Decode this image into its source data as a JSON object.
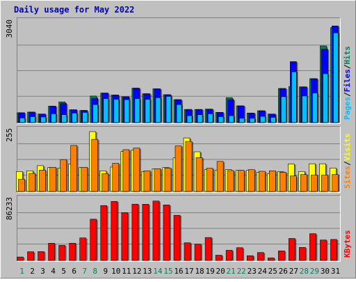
{
  "title": "Daily usage for May 2022",
  "colors": {
    "background": "#C0C0C0",
    "border_light": "#FFFFFF",
    "border_dark": "#808080",
    "title": "#0000C0",
    "hits": "#00805C",
    "files": "#0000FF",
    "pages": "#00C0FF",
    "visits": "#FFFF00",
    "sites": "#FF8000",
    "kbytes": "#FF0000",
    "weekday_label": "#000000",
    "weekend_label": "#00805C",
    "gridline": "#808080"
  },
  "chart_data": [
    {
      "type": "bar",
      "name": "hits-files-pages",
      "x": [
        1,
        2,
        3,
        4,
        5,
        6,
        7,
        8,
        9,
        10,
        11,
        12,
        13,
        14,
        15,
        16,
        17,
        18,
        19,
        20,
        21,
        22,
        23,
        24,
        25,
        26,
        27,
        28,
        29,
        30,
        31
      ],
      "weekend_days": [
        1,
        7,
        8,
        14,
        15,
        21,
        22,
        28,
        29
      ],
      "ymax_label": "3040",
      "ylim": [
        0,
        3040
      ],
      "legend": [
        {
          "label": "Pages",
          "color": "#00C0FF"
        },
        {
          "label": "/",
          "color": "#000000"
        },
        {
          "label": "Files",
          "color": "#0000FF"
        },
        {
          "label": "/",
          "color": "#000000"
        },
        {
          "label": "Hits",
          "color": "#00805C"
        }
      ],
      "series": [
        {
          "name": "Hits",
          "values": [
            300,
            320,
            260,
            500,
            630,
            390,
            370,
            810,
            900,
            840,
            790,
            1050,
            880,
            1030,
            850,
            700,
            400,
            400,
            410,
            310,
            760,
            510,
            290,
            360,
            260,
            1040,
            1100,
            1090,
            1340,
            2340,
            2900
          ]
        },
        {
          "name": "Files",
          "values": [
            300,
            320,
            260,
            500,
            580,
            390,
            370,
            740,
            900,
            840,
            790,
            1050,
            880,
            1030,
            850,
            700,
            400,
            400,
            410,
            310,
            700,
            510,
            290,
            360,
            260,
            1040,
            1860,
            1090,
            1340,
            2240,
            2950
          ]
        },
        {
          "name": "Pages",
          "values": [
            140,
            180,
            170,
            270,
            240,
            290,
            310,
            550,
            730,
            710,
            700,
            730,
            710,
            760,
            800,
            550,
            210,
            240,
            270,
            180,
            210,
            130,
            130,
            190,
            160,
            790,
            1550,
            810,
            900,
            1490,
            2740
          ]
        }
      ]
    },
    {
      "type": "bar",
      "name": "visits-sites",
      "x": [
        1,
        2,
        3,
        4,
        5,
        6,
        7,
        8,
        9,
        10,
        11,
        12,
        13,
        14,
        15,
        16,
        17,
        18,
        19,
        20,
        21,
        22,
        23,
        24,
        25,
        26,
        27,
        28,
        29,
        30,
        31
      ],
      "ymax_label": "255",
      "ylim": [
        0,
        255
      ],
      "legend": [
        {
          "label": "Sites",
          "color": "#FF8000"
        },
        {
          "label": "/",
          "color": "#000000"
        },
        {
          "label": "Visits",
          "color": "#FFFF00"
        }
      ],
      "series": [
        {
          "name": "Visits",
          "values": [
            85,
            88,
            110,
            102,
            100,
            117,
            102,
            255,
            88,
            104,
            170,
            176,
            85,
            97,
            102,
            143,
            228,
            169,
            93,
            90,
            93,
            90,
            90,
            81,
            75,
            84,
            117,
            85,
            118,
            118,
            100
          ]
        },
        {
          "name": "Sites",
          "values": [
            52,
            77,
            91,
            103,
            136,
            196,
            103,
            222,
            76,
            120,
            178,
            185,
            88,
            97,
            100,
            194,
            213,
            144,
            99,
            128,
            89,
            90,
            93,
            86,
            88,
            82,
            66,
            72,
            70,
            70,
            72
          ]
        }
      ]
    },
    {
      "type": "bar",
      "name": "kbytes",
      "x": [
        1,
        2,
        3,
        4,
        5,
        6,
        7,
        8,
        9,
        10,
        11,
        12,
        13,
        14,
        15,
        16,
        17,
        18,
        19,
        20,
        21,
        22,
        23,
        24,
        25,
        26,
        27,
        28,
        29,
        30,
        31
      ],
      "ymax_label": "86233",
      "ylim": [
        0,
        86233
      ],
      "legend": [
        {
          "label": "KBytes",
          "color": "#FF0000"
        }
      ],
      "series": [
        {
          "name": "KBytes",
          "values": [
            4900,
            12500,
            12700,
            24700,
            21700,
            24800,
            32400,
            59400,
            79000,
            85000,
            68900,
            81000,
            80900,
            85500,
            79900,
            65000,
            25400,
            23500,
            33000,
            7500,
            14600,
            18300,
            6800,
            11400,
            3600,
            13700,
            31600,
            18700,
            38500,
            29400,
            30200
          ]
        }
      ]
    }
  ]
}
